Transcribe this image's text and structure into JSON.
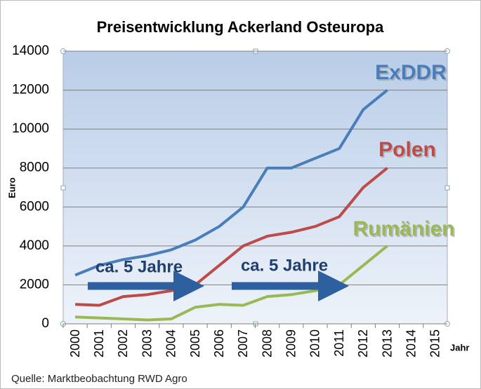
{
  "chart_data": {
    "type": "line",
    "title": "Preisentwicklung Ackerland Osteuropa",
    "y_label": "Euro",
    "x_label": "Jahr",
    "source": "Quelle: Marktbeobachtung RWD Agro",
    "annotations": [
      "ca. 5 Jahre",
      "ca. 5 Jahre"
    ],
    "categories": [
      "2000",
      "2001",
      "2002",
      "2003",
      "2004",
      "2005",
      "2006",
      "2007",
      "2008",
      "2009",
      "2010",
      "2011",
      "2012",
      "2013",
      "2014",
      "2015"
    ],
    "series": [
      {
        "name": "ExDDR",
        "color": "#4a7ebb",
        "values": [
          2500,
          3000,
          3300,
          3500,
          3800,
          4300,
          5000,
          6000,
          8000,
          8000,
          8500,
          9000,
          11000,
          12000,
          null,
          null
        ]
      },
      {
        "name": "Polen",
        "color": "#be4b48",
        "values": [
          1000,
          950,
          1400,
          1500,
          1700,
          2000,
          3000,
          4000,
          4500,
          4700,
          5000,
          5500,
          7000,
          8000,
          null,
          null
        ]
      },
      {
        "name": "Rumänien",
        "color": "#98b954",
        "values": [
          350,
          300,
          250,
          200,
          250,
          850,
          1000,
          950,
          1400,
          1500,
          1700,
          2000,
          3000,
          4000,
          null,
          null
        ]
      }
    ],
    "ylim": [
      0,
      14000
    ],
    "yticks": [
      0,
      2000,
      4000,
      6000,
      8000,
      10000,
      12000,
      14000
    ],
    "grid": true
  }
}
